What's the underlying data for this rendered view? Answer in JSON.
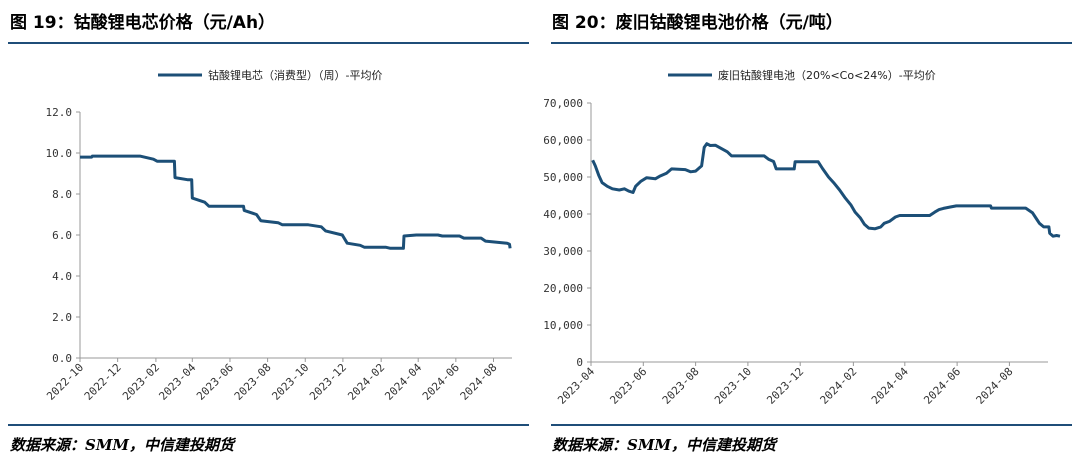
{
  "page": {
    "left_title": "图 19：钴酸锂电芯价格（元/Ah）",
    "right_title": "图 20：废旧钴酸锂电池价格（元/吨）",
    "left_source": "数据来源：SMM，中信建投期货",
    "right_source": "数据来源：SMM，中信建投期货"
  },
  "colors": {
    "line": "#1c4f77",
    "rule": "#1f4e79",
    "axis": "#999999"
  },
  "chart_data": [
    {
      "type": "line",
      "title": "",
      "xlabel": "",
      "ylabel": "",
      "legend_position": "top-center",
      "grid": false,
      "y_ticks": [
        "0.0",
        "2.0",
        "4.0",
        "6.0",
        "8.0",
        "10.0",
        "12.0"
      ],
      "x_ticks": [
        "2022-10",
        "2022-12",
        "2023-02",
        "2023-04",
        "2023-06",
        "2023-08",
        "2023-10",
        "2023-12",
        "2024-02",
        "2024-04",
        "2024-06",
        "2024-08"
      ],
      "ylim": [
        0,
        12
      ],
      "xlim": [
        "2022-10-01",
        "2024-08-31"
      ],
      "series": [
        {
          "name": "钴酸锂电芯（消费型）（周）-平均价",
          "points": [
            [
              "2022-10-01",
              9.8
            ],
            [
              "2022-10-20",
              9.8
            ],
            [
              "2022-10-21",
              9.85
            ],
            [
              "2023-01-06",
              9.85
            ],
            [
              "2023-01-28",
              9.7
            ],
            [
              "2023-02-03",
              9.6
            ],
            [
              "2023-03-03",
              9.6
            ],
            [
              "2023-03-04",
              8.8
            ],
            [
              "2023-03-24",
              8.7
            ],
            [
              "2023-03-31",
              8.7
            ],
            [
              "2023-04-01",
              7.8
            ],
            [
              "2023-04-21",
              7.6
            ],
            [
              "2023-04-28",
              7.4
            ],
            [
              "2023-06-23",
              7.4
            ],
            [
              "2023-06-24",
              7.2
            ],
            [
              "2023-07-14",
              7.0
            ],
            [
              "2023-07-21",
              6.7
            ],
            [
              "2023-08-18",
              6.6
            ],
            [
              "2023-08-25",
              6.5
            ],
            [
              "2023-10-06",
              6.5
            ],
            [
              "2023-10-27",
              6.4
            ],
            [
              "2023-11-03",
              6.2
            ],
            [
              "2023-11-30",
              6.0
            ],
            [
              "2023-12-08",
              5.6
            ],
            [
              "2023-12-29",
              5.5
            ],
            [
              "2024-01-05",
              5.4
            ],
            [
              "2024-02-09",
              5.4
            ],
            [
              "2024-02-16",
              5.35
            ],
            [
              "2024-03-08",
              5.35
            ],
            [
              "2024-03-09",
              5.95
            ],
            [
              "2024-03-29",
              6.0
            ],
            [
              "2024-05-03",
              6.0
            ],
            [
              "2024-05-10",
              5.95
            ],
            [
              "2024-06-07",
              5.95
            ],
            [
              "2024-06-14",
              5.85
            ],
            [
              "2024-07-12",
              5.85
            ],
            [
              "2024-07-19",
              5.7
            ],
            [
              "2024-08-23",
              5.6
            ],
            [
              "2024-08-27",
              5.55
            ],
            [
              "2024-08-28",
              5.35
            ]
          ]
        }
      ]
    },
    {
      "type": "line",
      "title": "",
      "xlabel": "",
      "ylabel": "",
      "legend_position": "top-center",
      "grid": false,
      "y_ticks": [
        "0",
        "10,000",
        "20,000",
        "30,000",
        "40,000",
        "50,000",
        "60,000",
        "70,000"
      ],
      "x_ticks": [
        "2023-04",
        "2023-06",
        "2023-08",
        "2023-10",
        "2023-12",
        "2024-02",
        "2024-04",
        "2024-06",
        "2024-08"
      ],
      "ylim": [
        0,
        70000
      ],
      "xlim": [
        "2023-04-01",
        "2024-09-15"
      ],
      "series": [
        {
          "name": "废旧钴酸锂电池（20%<Co<24%）-平均价",
          "points": [
            [
              "2023-04-03",
              54500
            ],
            [
              "2023-04-06",
              53000
            ],
            [
              "2023-04-10",
              50500
            ],
            [
              "2023-04-14",
              48500
            ],
            [
              "2023-04-20",
              47500
            ],
            [
              "2023-04-26",
              46800
            ],
            [
              "2023-05-04",
              46500
            ],
            [
              "2023-05-10",
              46800
            ],
            [
              "2023-05-15",
              46200
            ],
            [
              "2023-05-20",
              45800
            ],
            [
              "2023-05-23",
              47500
            ],
            [
              "2023-05-29",
              48800
            ],
            [
              "2023-06-05",
              49800
            ],
            [
              "2023-06-15",
              49500
            ],
            [
              "2023-06-20",
              50200
            ],
            [
              "2023-06-28",
              51000
            ],
            [
              "2023-07-04",
              52200
            ],
            [
              "2023-07-20",
              52000
            ],
            [
              "2023-07-26",
              51400
            ],
            [
              "2023-08-01",
              51600
            ],
            [
              "2023-08-08",
              53000
            ],
            [
              "2023-08-11",
              58000
            ],
            [
              "2023-08-14",
              59000
            ],
            [
              "2023-08-18",
              58500
            ],
            [
              "2023-08-24",
              58600
            ],
            [
              "2023-08-30",
              57800
            ],
            [
              "2023-09-07",
              56800
            ],
            [
              "2023-09-12",
              55700
            ],
            [
              "2023-10-20",
              55700
            ],
            [
              "2023-10-25",
              54800
            ],
            [
              "2023-10-31",
              54200
            ],
            [
              "2023-11-03",
              52200
            ],
            [
              "2023-11-24",
              52200
            ],
            [
              "2023-11-25",
              54100
            ],
            [
              "2023-12-22",
              54100
            ],
            [
              "2023-12-27",
              52300
            ],
            [
              "2024-01-03",
              50000
            ],
            [
              "2024-01-09",
              48500
            ],
            [
              "2024-01-16",
              46500
            ],
            [
              "2024-01-22",
              44500
            ],
            [
              "2024-01-29",
              42500
            ],
            [
              "2024-02-03",
              40500
            ],
            [
              "2024-02-09",
              39000
            ],
            [
              "2024-02-14",
              37200
            ],
            [
              "2024-02-19",
              36200
            ],
            [
              "2024-02-26",
              36000
            ],
            [
              "2024-03-04",
              36500
            ],
            [
              "2024-03-08",
              37500
            ],
            [
              "2024-03-14",
              38000
            ],
            [
              "2024-03-21",
              39200
            ],
            [
              "2024-03-26",
              39600
            ],
            [
              "2024-04-30",
              39600
            ],
            [
              "2024-05-06",
              40500
            ],
            [
              "2024-05-11",
              41200
            ],
            [
              "2024-05-16",
              41500
            ],
            [
              "2024-05-24",
              41900
            ],
            [
              "2024-05-31",
              42200
            ],
            [
              "2024-07-10",
              42200
            ],
            [
              "2024-07-11",
              41600
            ],
            [
              "2024-08-20",
              41600
            ],
            [
              "2024-08-28",
              40300
            ],
            [
              "2024-09-02",
              38500
            ],
            [
              "2024-09-05",
              37500
            ],
            [
              "2024-09-10",
              36500
            ],
            [
              "2024-09-16",
              36500
            ],
            [
              "2024-09-17",
              34800
            ],
            [
              "2024-09-21",
              34000
            ],
            [
              "2024-09-25",
              34200
            ],
            [
              "2024-09-29",
              34000
            ]
          ]
        }
      ]
    }
  ]
}
